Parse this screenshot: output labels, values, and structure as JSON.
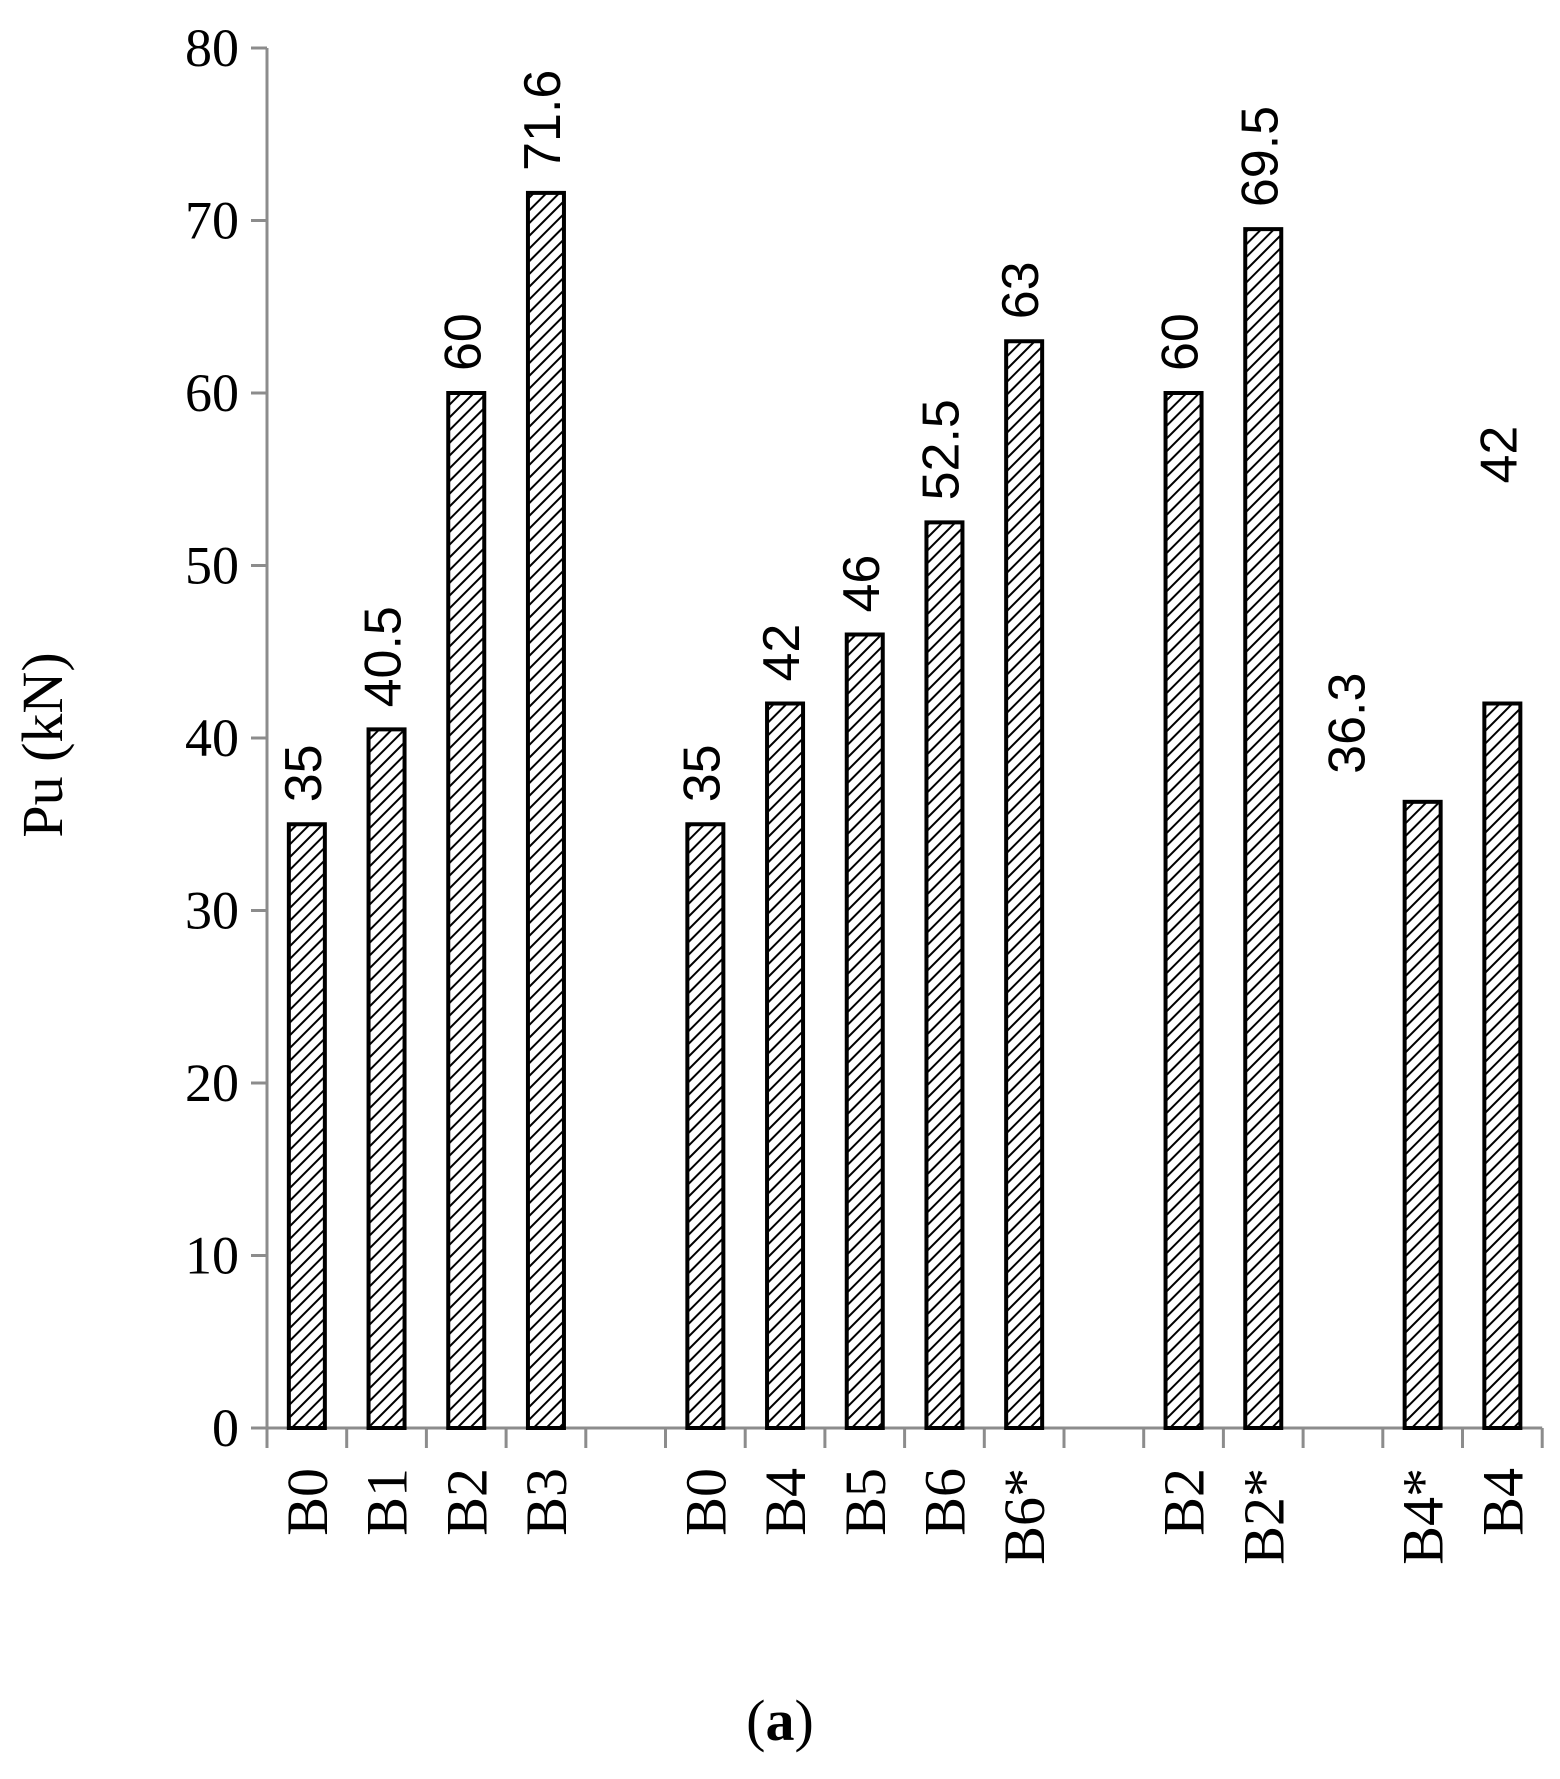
{
  "chart_data": {
    "type": "bar",
    "ylabel": "Pu (kN)",
    "ylim": [
      0,
      80
    ],
    "yticks": [
      0,
      10,
      20,
      30,
      40,
      50,
      60,
      70,
      80
    ],
    "grid": false,
    "legend": "none",
    "caption": {
      "open": "(",
      "letter": "a",
      "close": ")"
    },
    "groups": [
      {
        "categories": [
          "B0",
          "B1",
          "B2",
          "B3"
        ],
        "values": [
          35,
          40.5,
          60,
          71.6
        ],
        "labels": [
          "35",
          "40.5",
          "60",
          "71.6"
        ]
      },
      {
        "categories": [
          "B0",
          "B4",
          "B5",
          "B6",
          "B6*"
        ],
        "values": [
          35,
          42,
          46,
          52.5,
          63
        ],
        "labels": [
          "35",
          "42",
          "46",
          "52.5",
          "63"
        ]
      },
      {
        "categories": [
          "B2",
          "B2*"
        ],
        "values": [
          60,
          69.5
        ],
        "labels": [
          "60",
          "69.5"
        ]
      },
      {
        "categories": [
          "B4*",
          "B4"
        ],
        "values": [
          36.3,
          42
        ],
        "labels": [
          "36.3",
          "42"
        ]
      }
    ],
    "bar_fill": "hatched",
    "colors": {
      "axis": "#8c8c8c",
      "bar_stroke": "#000000",
      "hatch": "#000000"
    }
  }
}
